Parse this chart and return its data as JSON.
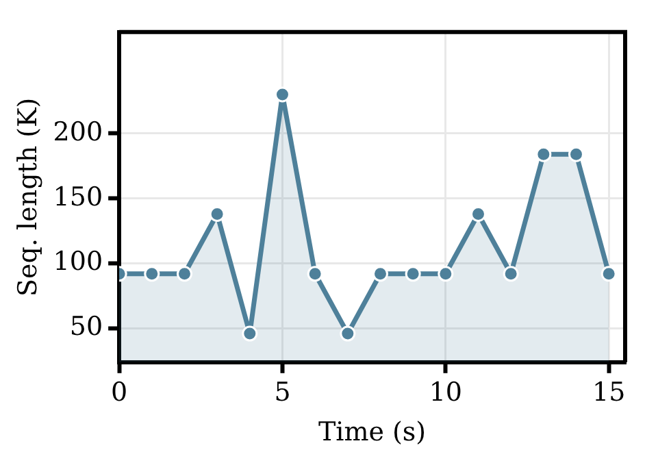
{
  "chart_data": {
    "type": "area",
    "xlabel": "Time (s)",
    "ylabel": "Seq. length (K)",
    "x": [
      0,
      1,
      2,
      3,
      4,
      5,
      6,
      7,
      8,
      9,
      10,
      11,
      12,
      13,
      14,
      15
    ],
    "series": [
      {
        "color": "#4e809a",
        "values": [
          92,
          92,
          92,
          138,
          46,
          230,
          92,
          46,
          92,
          92,
          92,
          138,
          92,
          184,
          184,
          92
        ]
      }
    ],
    "xlim": [
      0,
      15.5
    ],
    "xticks": [
      0,
      5,
      10,
      15
    ],
    "ylim": [
      24,
      278
    ],
    "yticks": [
      50,
      100,
      150,
      200
    ],
    "grid": true,
    "marker": "circle",
    "line_style": "solid",
    "legend": false
  }
}
